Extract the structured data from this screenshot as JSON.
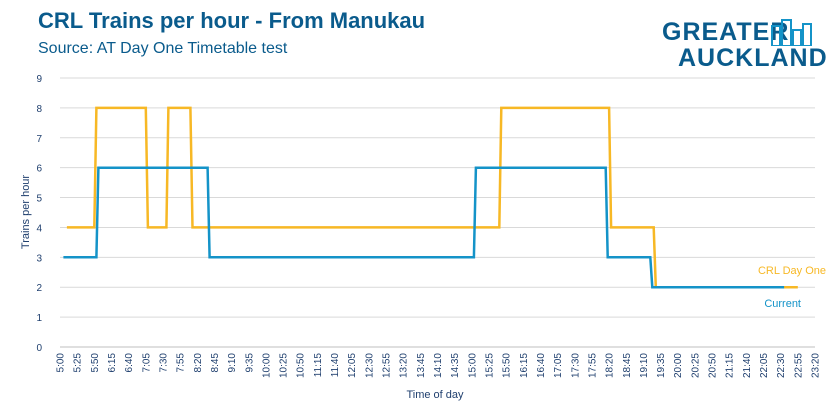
{
  "header": {
    "title": "CRL Trains per hour - From Manukau",
    "subtitle": "Source: AT Day One Timetable test"
  },
  "logo": {
    "line1": "GREATER",
    "line2": "AUCKLAND"
  },
  "colors": {
    "brand": "#0a5b8c",
    "current": "#1493c8",
    "crl": "#f7b825",
    "grid": "#d9d9d9",
    "axis_text": "#1f3f6e"
  },
  "chart_data": {
    "type": "line",
    "xlabel": "Time of day",
    "ylabel": "Trains per hour",
    "ylim": [
      0,
      9
    ],
    "yticks": [
      0,
      1,
      2,
      3,
      4,
      5,
      6,
      7,
      8,
      9
    ],
    "xlim": [
      "5:00",
      "23:20"
    ],
    "x_tick_labels": [
      "5:00",
      "5:25",
      "5:50",
      "6:15",
      "6:40",
      "7:05",
      "7:30",
      "7:55",
      "8:20",
      "8:45",
      "9:10",
      "9:35",
      "10:00",
      "10:25",
      "10:50",
      "11:15",
      "11:40",
      "12:05",
      "12:30",
      "12:55",
      "13:20",
      "13:45",
      "14:10",
      "14:35",
      "15:00",
      "15:25",
      "15:50",
      "16:15",
      "16:40",
      "17:05",
      "17:30",
      "17:55",
      "18:20",
      "18:45",
      "19:10",
      "19:35",
      "20:00",
      "20:25",
      "20:50",
      "21:15",
      "21:40",
      "22:05",
      "22:30",
      "22:55",
      "23:20"
    ],
    "grid": "horizontal",
    "series": [
      {
        "name": "CRL Day One",
        "color": "#f7b825",
        "points": [
          [
            "5:10",
            4
          ],
          [
            "5:50",
            4
          ],
          [
            "5:53",
            8
          ],
          [
            "7:05",
            8
          ],
          [
            "7:08",
            4
          ],
          [
            "7:35",
            4
          ],
          [
            "7:38",
            8
          ],
          [
            "8:10",
            8
          ],
          [
            "8:13",
            4
          ],
          [
            "15:40",
            4
          ],
          [
            "15:43",
            8
          ],
          [
            "18:20",
            8
          ],
          [
            "18:23",
            4
          ],
          [
            "19:25",
            4
          ],
          [
            "19:28",
            2
          ],
          [
            "22:55",
            2
          ]
        ]
      },
      {
        "name": "Current",
        "color": "#1493c8",
        "points": [
          [
            "5:05",
            3
          ],
          [
            "5:53",
            3
          ],
          [
            "5:56",
            6
          ],
          [
            "8:35",
            6
          ],
          [
            "8:38",
            3
          ],
          [
            "15:03",
            3
          ],
          [
            "15:06",
            6
          ],
          [
            "18:15",
            6
          ],
          [
            "18:18",
            3
          ],
          [
            "19:20",
            3
          ],
          [
            "19:23",
            2
          ],
          [
            "22:35",
            2
          ]
        ]
      }
    ],
    "legend_labels": [
      {
        "series": "CRL Day One",
        "color": "#f7b825"
      },
      {
        "series": "Current",
        "color": "#1493c8"
      }
    ]
  }
}
